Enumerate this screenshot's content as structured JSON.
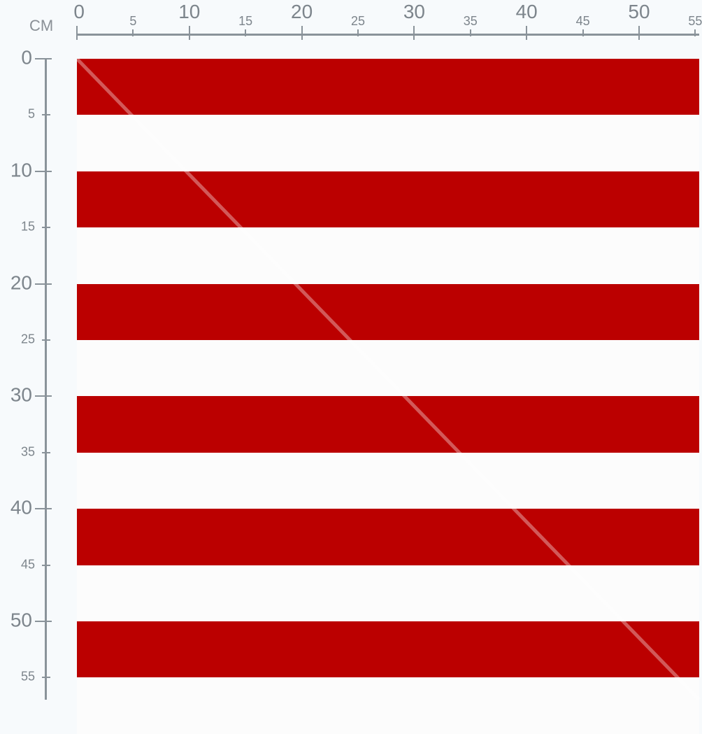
{
  "ruler": {
    "unit": "CM",
    "top_labels": [
      "0",
      "5",
      "10",
      "15",
      "20",
      "25",
      "30",
      "35",
      "40",
      "45",
      "50",
      "55"
    ],
    "left_labels": [
      "0",
      "5",
      "10",
      "15",
      "20",
      "25",
      "30",
      "35",
      "40",
      "45",
      "50",
      "55"
    ],
    "color": "#8a939a"
  },
  "fabric": {
    "pattern": "horizontal stripes",
    "stripe_width_cm": 5,
    "colors": {
      "red": "#bb0000",
      "white": "#fcfcfc"
    }
  }
}
